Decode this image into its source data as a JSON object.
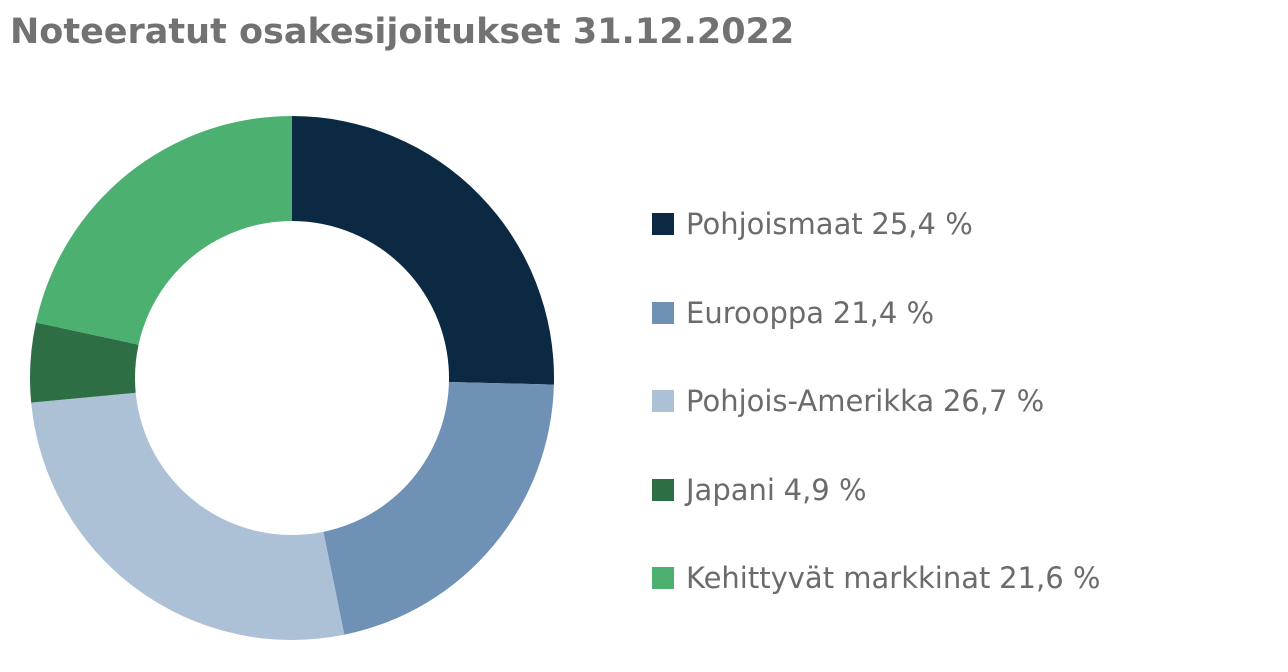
{
  "chart_data": {
    "type": "donut",
    "title": "Noteeratut osakesijoitukset 31.12.2022",
    "categories": [
      "Pohjoismaat",
      "Eurooppa",
      "Pohjois-Amerikka",
      "Japani",
      "Kehittyvät markkinat"
    ],
    "values": [
      25.4,
      21.4,
      26.7,
      4.9,
      21.6
    ],
    "value_labels": [
      "25,4 %",
      "21,4 %",
      "26,7 %",
      "4,9 %",
      "21,6 %"
    ],
    "colors": [
      "#0b2942",
      "#6f91b5",
      "#adc1d6",
      "#2e6e44",
      "#4bb070"
    ]
  }
}
